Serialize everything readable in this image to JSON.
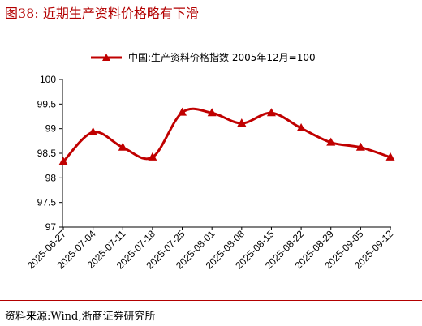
{
  "header": {
    "figure_title": "图38:   近期生产资料价格略有下滑"
  },
  "footer": {
    "source_text": "资料来源:Wind,浙商证券研究所"
  },
  "colors": {
    "accent": "#b30000",
    "series": "#c00000"
  },
  "chart_data": {
    "type": "line",
    "title": "",
    "xlabel": "",
    "ylabel": "",
    "ylim": [
      97,
      100
    ],
    "yticks": [
      "97",
      "97.5",
      "98",
      "98.5",
      "99",
      "99.5",
      "100"
    ],
    "grid": false,
    "legend_position": "top-center",
    "categories": [
      "2025-06-27",
      "2025-07-04",
      "2025-07-11",
      "2025-07-18",
      "2025-07-25",
      "2025-08-01",
      "2025-08-08",
      "2025-08-15",
      "2025-08-22",
      "2025-08-29",
      "2025-09-05",
      "2025-09-12"
    ],
    "series": [
      {
        "name": "中国:生产资料价格指数 2005年12月=100",
        "values": [
          98.33,
          98.93,
          98.62,
          98.42,
          99.33,
          99.32,
          99.11,
          99.32,
          99.01,
          98.72,
          98.62,
          98.42
        ]
      }
    ]
  }
}
